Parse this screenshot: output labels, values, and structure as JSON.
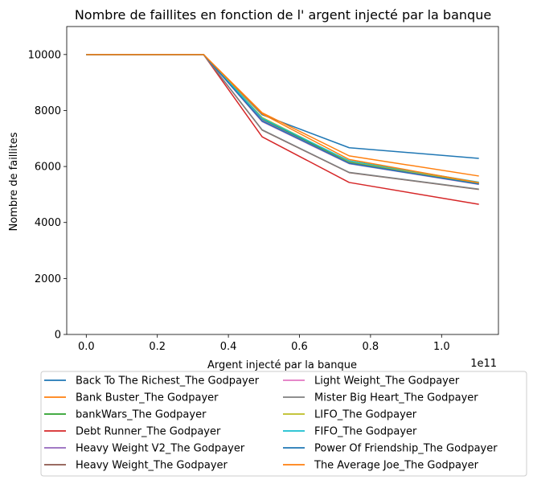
{
  "chart_data": {
    "type": "line",
    "title": "Nombre de faillites en fonction de l' argent injecté par la banque",
    "xlabel": "Argent injecté par la banque",
    "ylabel": "Nombre de faillites",
    "x_offset_label": "1e11",
    "x": [
      0,
      33000000000,
      49500000000,
      74000000000,
      110500000000
    ],
    "xlim": [
      -5500000000,
      116000000000
    ],
    "ylim": [
      0,
      11000
    ],
    "x_ticks": [
      0,
      20000000000,
      40000000000,
      60000000000,
      80000000000,
      100000000000
    ],
    "x_tick_labels": [
      "0.0",
      "0.2",
      "0.4",
      "0.6",
      "0.8",
      "1.0"
    ],
    "y_ticks": [
      0,
      2000,
      4000,
      6000,
      8000,
      10000
    ],
    "y_tick_labels": [
      "0",
      "2000",
      "4000",
      "6000",
      "8000",
      "10000"
    ],
    "grid": false,
    "legend_position": "below-center",
    "series": [
      {
        "name": "Back To The Richest_The Godpayer",
        "color": "#1f77b4",
        "values": [
          10000,
          10000,
          7850,
          6670,
          6290
        ]
      },
      {
        "name": "Bank Buster_The Godpayer",
        "color": "#ff7f0e",
        "values": [
          10000,
          10000,
          7920,
          6380,
          5660
        ]
      },
      {
        "name": "bankWars_The Godpayer",
        "color": "#2ca02c",
        "values": [
          10000,
          10000,
          7700,
          6150,
          5390
        ]
      },
      {
        "name": "Debt Runner_The Godpayer",
        "color": "#d62728",
        "values": [
          10000,
          10000,
          7060,
          5430,
          4650
        ]
      },
      {
        "name": "Heavy Weight V2_The Godpayer",
        "color": "#9467bd",
        "values": [
          10000,
          10000,
          7650,
          6120,
          5380
        ]
      },
      {
        "name": "Heavy Weight_The Godpayer",
        "color": "#8c564b",
        "values": [
          10000,
          10000,
          7300,
          5780,
          5180
        ]
      },
      {
        "name": "Light Weight_The Godpayer",
        "color": "#e377c2",
        "values": [
          10000,
          10000,
          7600,
          6100,
          5360
        ]
      },
      {
        "name": "Mister Big Heart_The Godpayer",
        "color": "#7f7f7f",
        "values": [
          10000,
          10000,
          7310,
          5790,
          5190
        ]
      },
      {
        "name": "LIFO_The Godpayer",
        "color": "#bcbd22",
        "values": [
          10000,
          10000,
          7750,
          6180,
          5410
        ]
      },
      {
        "name": "FIFO_The Godpayer",
        "color": "#17becf",
        "values": [
          10000,
          10000,
          7720,
          6200,
          5440
        ]
      },
      {
        "name": "Power Of Friendship_The Godpayer",
        "color": "#1f77b4",
        "values": [
          10000,
          10000,
          7620,
          6110,
          5370
        ]
      },
      {
        "name": "The Average Joe_The Godpayer",
        "color": "#ff7f0e",
        "values": [
          10000,
          10000,
          7880,
          6250,
          5420
        ]
      }
    ]
  }
}
